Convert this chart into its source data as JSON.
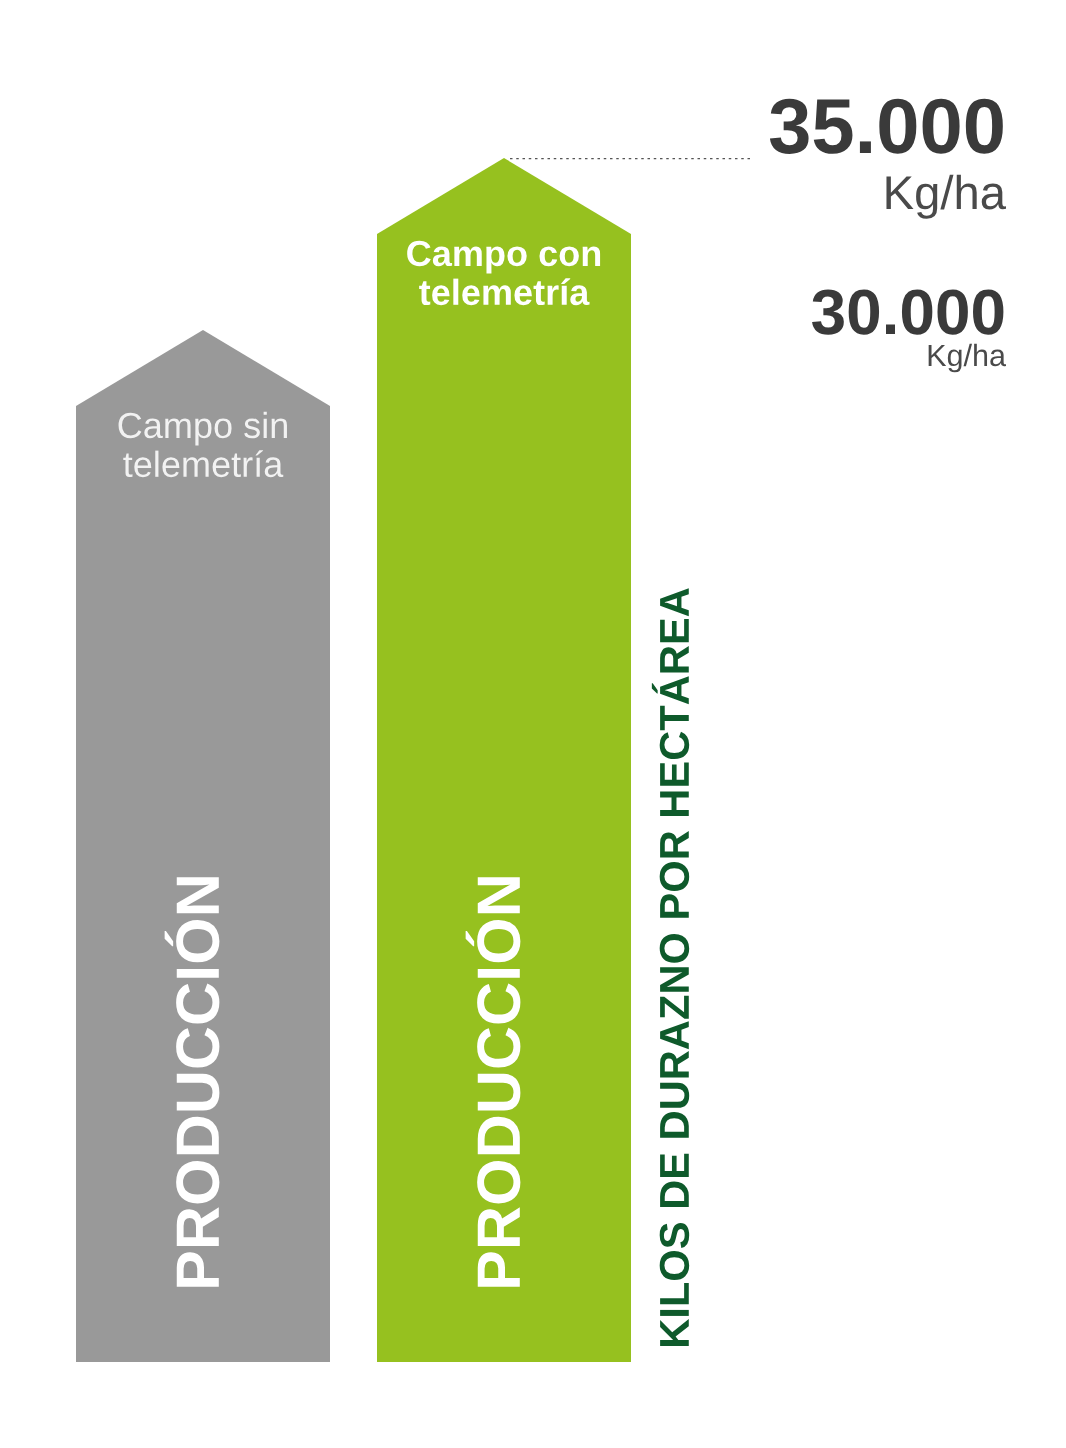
{
  "chart_data": {
    "type": "bar",
    "categories": [
      "Campo sin telemetría",
      "Campo con telemetría"
    ],
    "values": [
      30000,
      35000
    ],
    "colors": [
      "#999999",
      "#96c11f"
    ],
    "ylabel": "KILOS DE DURAZNO POR HECTÁREA",
    "ylim": [
      0,
      35000
    ],
    "yticks": [
      {
        "value": 30000,
        "label": "30.000 Kg/ha"
      },
      {
        "value": 35000,
        "label": "35.000 Kg/ha"
      }
    ],
    "ref_lines": [
      {
        "axis": "y",
        "value": 35000,
        "color": "#555555",
        "line_style": "dotted"
      }
    ],
    "annotations": [
      "PRODUCCIÓN",
      "PRODUCCIÓN"
    ]
  }
}
